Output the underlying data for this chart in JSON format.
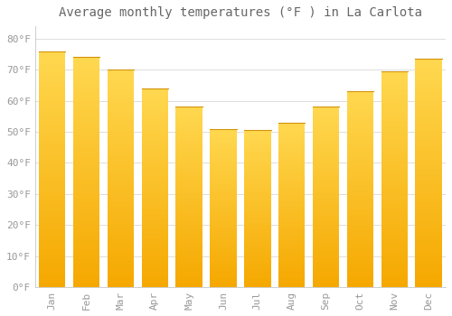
{
  "title": "Average monthly temperatures (°F ) in La Carlota",
  "months": [
    "Jan",
    "Feb",
    "Mar",
    "Apr",
    "May",
    "Jun",
    "Jul",
    "Aug",
    "Sep",
    "Oct",
    "Nov",
    "Dec"
  ],
  "values": [
    76,
    74,
    70,
    64,
    58,
    51,
    50.5,
    53,
    58,
    63,
    69.5,
    73.5
  ],
  "bar_color_top": "#FFD040",
  "bar_color_bottom": "#F5A800",
  "bar_color_mid": "#FFC020",
  "bar_edge_color": "#D4920A",
  "background_color": "#FFFFFF",
  "grid_color": "#DDDDDD",
  "yticks": [
    0,
    10,
    20,
    30,
    40,
    50,
    60,
    70,
    80
  ],
  "ylim": [
    0,
    84
  ],
  "title_fontsize": 10,
  "tick_fontsize": 8,
  "tick_color": "#999999",
  "font_family": "monospace"
}
